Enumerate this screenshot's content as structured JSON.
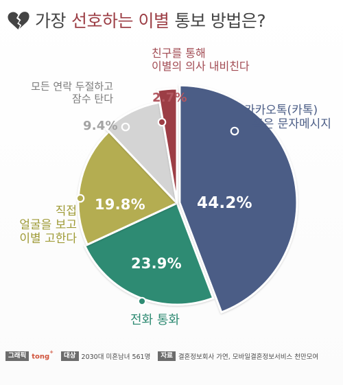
{
  "title": {
    "part1": "가장",
    "part2": "선호하는 이별",
    "part3": "통보 방법은?"
  },
  "chart_data": {
    "type": "pie",
    "title": "가장 선호하는 이별 통보 방법은?",
    "slices": [
      {
        "label_lines": [
          "카카오톡(카톡)",
          "혹은 문자메시지"
        ],
        "value": 44.2,
        "display": "44.2%",
        "color": "#4b5d86"
      },
      {
        "label_lines": [
          "전화 통화"
        ],
        "value": 23.9,
        "display": "23.9%",
        "color": "#2f8b73"
      },
      {
        "label_lines": [
          "직접",
          "얼굴을 보고",
          "이별 고한다"
        ],
        "value": 19.8,
        "display": "19.8%",
        "color": "#b4ad51"
      },
      {
        "label_lines": [
          "모든 연락 두절하고",
          "잠수 탄다"
        ],
        "value": 9.4,
        "display": "9.4%",
        "color": "#d4d4d4"
      },
      {
        "label_lines": [
          "친구를 통해",
          "이별의 의사 내비친다"
        ],
        "value": 2.7,
        "display": "2.7%",
        "color": "#9c3e45"
      }
    ]
  },
  "footer": {
    "graphic_label": "그래픽",
    "brand_text": "tong",
    "brand_sup": "+",
    "target_label": "대상",
    "target_value": "2030대 미혼남녀 561명",
    "source_label": "자료",
    "source_value": "결혼정보회사 가연, 모바일결혼정보서비스 천만모여"
  }
}
